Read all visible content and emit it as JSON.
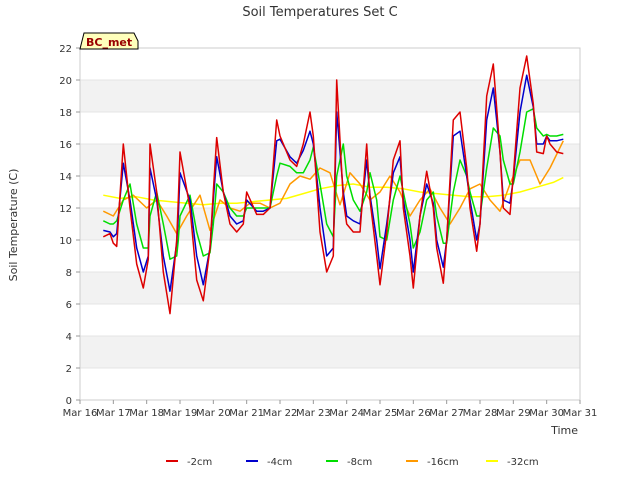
{
  "chart_data": {
    "type": "line",
    "title": "Soil Temperatures Set C",
    "xlabel": "Time",
    "ylabel": "Soil Temperature (C)",
    "annotation": "BC_met",
    "xlim": [
      16,
      31
    ],
    "ylim": [
      0,
      22
    ],
    "x_ticks": [
      "Mar 16",
      "Mar 17",
      "Mar 18",
      "Mar 19",
      "Mar 20",
      "Mar 21",
      "Mar 22",
      "Mar 23",
      "Mar 24",
      "Mar 25",
      "Mar 26",
      "Mar 27",
      "Mar 28",
      "Mar 29",
      "Mar 30",
      "Mar 31"
    ],
    "y_ticks": [
      0,
      2,
      4,
      6,
      8,
      10,
      12,
      14,
      16,
      18,
      20,
      22
    ],
    "legend_position": "bottom",
    "grid": "horizontal alternating bands",
    "x_unit": "day of March",
    "series": [
      {
        "name": "-2cm",
        "color": "#dd0000",
        "x": [
          16.7,
          16.9,
          17.0,
          17.1,
          17.3,
          17.5,
          17.7,
          17.9,
          18.05,
          18.1,
          18.3,
          18.5,
          18.7,
          18.9,
          18.95,
          19.0,
          19.3,
          19.5,
          19.7,
          19.9,
          20.0,
          20.1,
          20.3,
          20.5,
          20.7,
          20.9,
          21.0,
          21.3,
          21.5,
          21.7,
          21.9,
          22.0,
          22.3,
          22.5,
          22.7,
          22.9,
          23.0,
          23.2,
          23.4,
          23.6,
          23.7,
          23.9,
          24.0,
          24.2,
          24.4,
          24.6,
          24.7,
          24.9,
          25.0,
          25.2,
          25.4,
          25.6,
          25.7,
          25.9,
          26.0,
          26.2,
          26.4,
          26.6,
          26.7,
          26.9,
          27.0,
          27.2,
          27.4,
          27.6,
          27.7,
          27.9,
          28.0,
          28.2,
          28.4,
          28.6,
          28.7,
          28.9,
          29.0,
          29.2,
          29.4,
          29.6,
          29.7,
          29.9,
          30.0,
          30.1,
          30.3,
          30.5
        ],
        "values": [
          10.2,
          10.4,
          9.8,
          9.6,
          16.0,
          12.0,
          8.5,
          7.0,
          8.8,
          16.0,
          13.0,
          8.0,
          5.4,
          10.0,
          12.5,
          15.5,
          12.0,
          7.5,
          6.2,
          9.5,
          13.0,
          16.4,
          13.0,
          11.0,
          10.5,
          11.0,
          13.0,
          11.6,
          11.6,
          12.0,
          17.5,
          16.5,
          15.0,
          14.6,
          16.0,
          18.0,
          16.5,
          10.5,
          8.0,
          9.0,
          20.0,
          12.5,
          11.0,
          10.5,
          10.5,
          16.0,
          12.5,
          9.0,
          7.2,
          10.5,
          15.0,
          16.2,
          12.0,
          9.0,
          7.0,
          11.5,
          14.3,
          12.0,
          9.5,
          7.3,
          10.0,
          17.5,
          18.0,
          14.5,
          12.0,
          9.3,
          11.0,
          19.0,
          21.0,
          15.5,
          12.0,
          11.6,
          14.0,
          19.5,
          21.5,
          18.5,
          15.5,
          15.4,
          16.5,
          16.0,
          15.5,
          15.4
        ]
      },
      {
        "name": "-4cm",
        "color": "#0000cc",
        "x": [
          16.7,
          16.9,
          17.0,
          17.1,
          17.3,
          17.5,
          17.7,
          17.9,
          18.05,
          18.1,
          18.3,
          18.5,
          18.7,
          18.9,
          18.95,
          19.0,
          19.3,
          19.5,
          19.7,
          19.9,
          20.0,
          20.1,
          20.3,
          20.5,
          20.7,
          20.9,
          21.0,
          21.3,
          21.5,
          21.7,
          21.9,
          22.0,
          22.3,
          22.5,
          22.7,
          22.9,
          23.0,
          23.2,
          23.4,
          23.6,
          23.7,
          23.9,
          24.0,
          24.2,
          24.4,
          24.6,
          24.7,
          24.9,
          25.0,
          25.2,
          25.4,
          25.6,
          25.7,
          25.9,
          26.0,
          26.2,
          26.4,
          26.6,
          26.7,
          26.9,
          27.0,
          27.2,
          27.4,
          27.6,
          27.7,
          27.9,
          28.0,
          28.2,
          28.4,
          28.6,
          28.7,
          28.9,
          29.0,
          29.2,
          29.4,
          29.6,
          29.7,
          29.9,
          30.0,
          30.1,
          30.3,
          30.5
        ],
        "values": [
          10.6,
          10.5,
          10.2,
          10.4,
          14.8,
          12.5,
          9.5,
          8.0,
          9.0,
          14.5,
          12.5,
          9.0,
          6.8,
          9.8,
          11.5,
          14.2,
          12.5,
          9.0,
          7.2,
          9.5,
          12.5,
          15.2,
          13.0,
          11.5,
          11.0,
          11.2,
          12.5,
          11.8,
          11.8,
          12.0,
          16.2,
          16.3,
          15.2,
          14.8,
          15.6,
          16.8,
          16.0,
          12.0,
          9.0,
          9.5,
          18.0,
          13.0,
          11.5,
          11.2,
          11.0,
          15.0,
          12.8,
          10.0,
          8.2,
          11.0,
          14.2,
          15.2,
          12.5,
          10.0,
          8.0,
          11.5,
          13.5,
          12.3,
          10.0,
          8.3,
          10.0,
          16.5,
          16.8,
          14.0,
          12.5,
          10.0,
          11.0,
          17.5,
          19.5,
          15.5,
          12.5,
          12.3,
          13.8,
          18.0,
          20.3,
          18.3,
          16.0,
          16.0,
          16.5,
          16.2,
          16.2,
          16.3
        ]
      },
      {
        "name": "-8cm",
        "color": "#00dd00",
        "x": [
          16.7,
          16.9,
          17.0,
          17.1,
          17.3,
          17.5,
          17.7,
          17.9,
          18.05,
          18.1,
          18.3,
          18.5,
          18.7,
          18.9,
          18.95,
          19.0,
          19.3,
          19.5,
          19.7,
          19.9,
          20.0,
          20.1,
          20.3,
          20.5,
          20.7,
          20.9,
          21.0,
          21.3,
          21.5,
          21.7,
          21.9,
          22.0,
          22.3,
          22.5,
          22.7,
          22.9,
          23.0,
          23.2,
          23.4,
          23.6,
          23.7,
          23.9,
          24.0,
          24.2,
          24.4,
          24.6,
          24.7,
          24.9,
          25.0,
          25.2,
          25.4,
          25.6,
          25.7,
          25.9,
          26.0,
          26.2,
          26.4,
          26.6,
          26.7,
          26.9,
          27.0,
          27.2,
          27.4,
          27.6,
          27.7,
          27.9,
          28.0,
          28.2,
          28.4,
          28.6,
          28.7,
          28.9,
          29.0,
          29.2,
          29.4,
          29.6,
          29.7,
          29.9,
          30.0,
          30.1,
          30.3,
          30.5
        ],
        "values": [
          11.2,
          11.0,
          11.0,
          11.2,
          12.5,
          13.5,
          11.0,
          9.5,
          9.5,
          11.5,
          13.0,
          11.0,
          8.8,
          9.0,
          10.0,
          11.5,
          12.8,
          10.5,
          9.0,
          9.2,
          11.0,
          13.5,
          13.0,
          12.0,
          11.5,
          11.5,
          12.0,
          12.0,
          12.0,
          12.0,
          14.0,
          14.8,
          14.6,
          14.2,
          14.2,
          15.0,
          15.8,
          13.5,
          11.0,
          10.2,
          14.0,
          16.0,
          14.0,
          12.5,
          11.8,
          13.0,
          14.2,
          12.5,
          10.2,
          10.0,
          12.5,
          14.0,
          13.0,
          11.0,
          9.5,
          10.5,
          12.5,
          13.0,
          11.5,
          9.8,
          9.8,
          13.0,
          15.0,
          14.0,
          13.0,
          11.5,
          11.5,
          14.5,
          17.0,
          16.5,
          15.0,
          13.5,
          13.5,
          15.5,
          18.0,
          18.2,
          17.0,
          16.5,
          16.6,
          16.5,
          16.5,
          16.6
        ]
      },
      {
        "name": "-16cm",
        "color": "#ff9900",
        "x": [
          16.7,
          17.0,
          17.3,
          17.6,
          18.0,
          18.3,
          18.6,
          18.9,
          19.2,
          19.6,
          19.9,
          20.2,
          20.5,
          20.8,
          21.1,
          21.4,
          21.7,
          22.0,
          22.3,
          22.6,
          22.9,
          23.2,
          23.5,
          23.8,
          24.1,
          24.4,
          24.7,
          25.0,
          25.3,
          25.6,
          25.9,
          26.2,
          26.5,
          26.8,
          27.1,
          27.4,
          27.7,
          28.0,
          28.3,
          28.6,
          28.9,
          29.2,
          29.5,
          29.8,
          30.1,
          30.5
        ],
        "values": [
          11.8,
          11.5,
          12.5,
          12.8,
          12.0,
          12.5,
          11.5,
          10.4,
          11.5,
          12.8,
          10.6,
          12.5,
          12.0,
          11.8,
          12.3,
          12.3,
          12.0,
          12.3,
          13.5,
          14.0,
          13.8,
          14.5,
          14.2,
          12.2,
          14.2,
          13.5,
          12.5,
          13.0,
          14.0,
          13.0,
          11.5,
          12.5,
          13.2,
          12.0,
          11.0,
          12.0,
          13.2,
          13.5,
          12.5,
          11.8,
          13.5,
          15.0,
          15.0,
          13.5,
          14.5,
          16.2
        ]
      },
      {
        "name": "-32cm",
        "color": "#ffff00",
        "x": [
          16.7,
          17.2,
          17.7,
          18.2,
          18.7,
          19.2,
          19.7,
          20.2,
          20.7,
          21.2,
          21.7,
          22.2,
          22.7,
          23.2,
          23.7,
          24.2,
          24.7,
          25.2,
          25.7,
          26.2,
          26.7,
          27.2,
          27.7,
          28.2,
          28.7,
          29.2,
          29.7,
          30.2,
          30.5
        ],
        "values": [
          12.8,
          12.6,
          12.7,
          12.5,
          12.4,
          12.3,
          12.2,
          12.3,
          12.3,
          12.4,
          12.5,
          12.6,
          12.9,
          13.2,
          13.4,
          13.5,
          13.3,
          13.3,
          13.2,
          13.0,
          12.9,
          12.8,
          12.7,
          12.7,
          12.8,
          13.0,
          13.3,
          13.6,
          13.9
        ]
      }
    ]
  }
}
